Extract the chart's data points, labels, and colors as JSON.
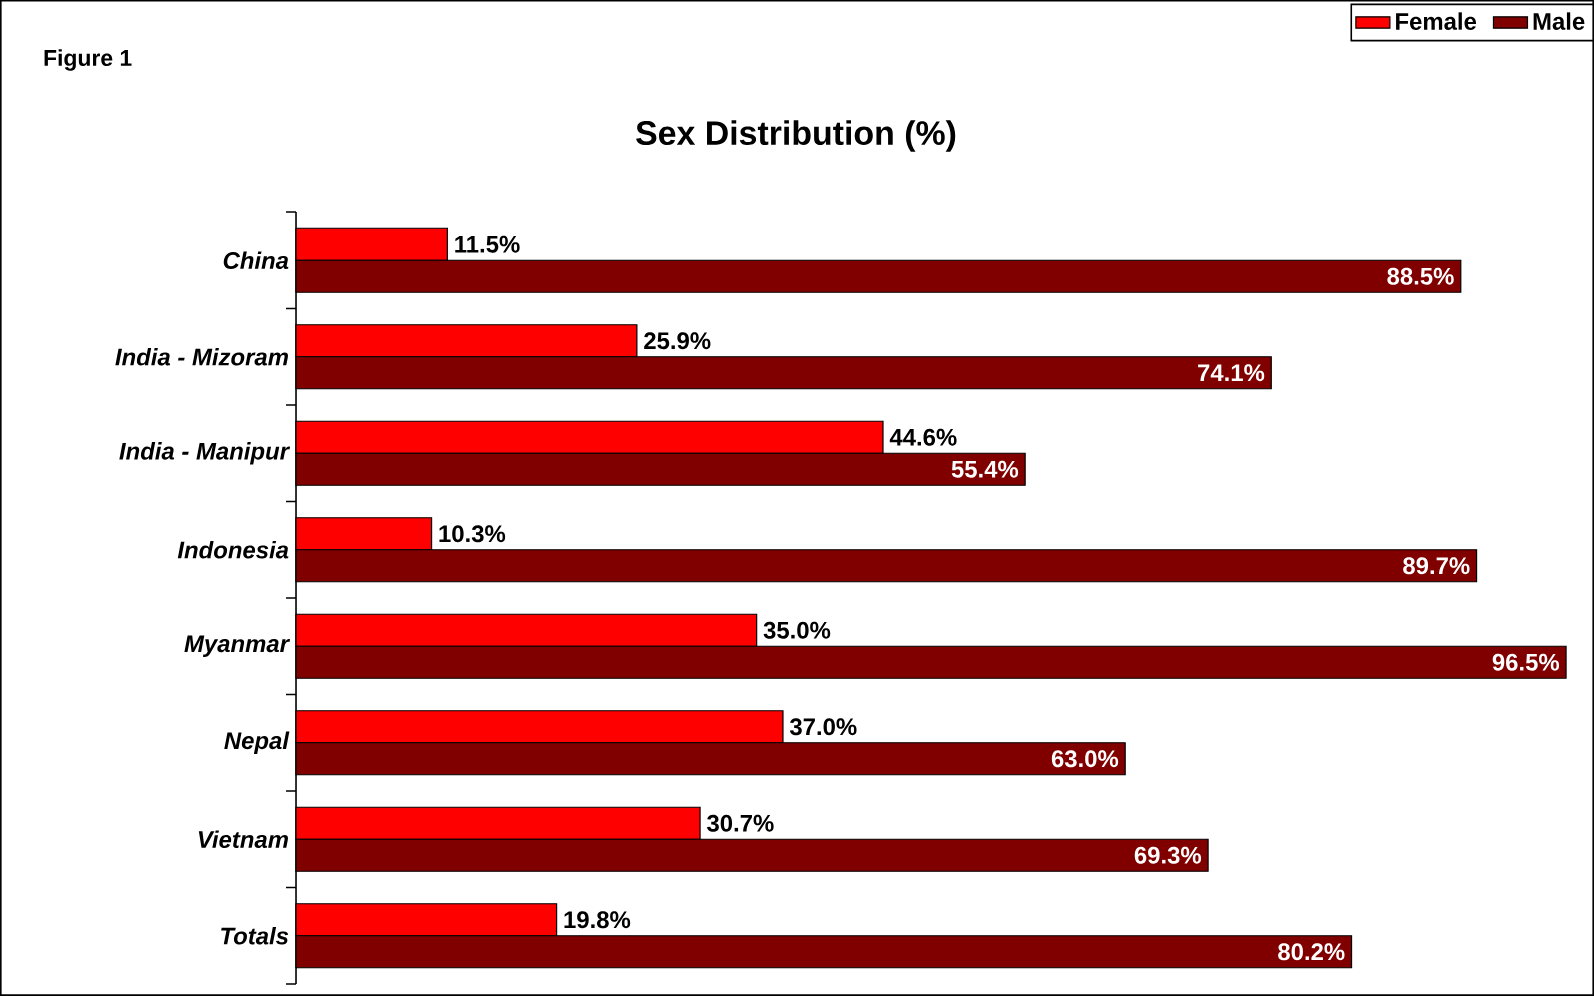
{
  "chart_data": {
    "type": "bar",
    "orientation": "horizontal",
    "title": "Sex Distribution (%)",
    "annotations": [
      "Figure 1"
    ],
    "categories": [
      "China",
      "India - Mizoram",
      "India - Manipur",
      "Indonesia",
      "Myanmar",
      "Nepal",
      "Vietnam",
      "Totals"
    ],
    "series": [
      {
        "name": "Female",
        "color": "#ff0000",
        "values": [
          11.5,
          25.9,
          44.6,
          10.3,
          35.0,
          37.0,
          30.7,
          19.8
        ],
        "value_labels": [
          "11.5%",
          "25.9%",
          "44.6%",
          "10.3%",
          "35.0%",
          "37.0%",
          "30.7%",
          "19.8%"
        ]
      },
      {
        "name": "Male",
        "color": "#800000",
        "values": [
          88.5,
          74.1,
          55.4,
          89.7,
          96.5,
          63.0,
          69.3,
          80.2
        ],
        "value_labels": [
          "88.5%",
          "74.1%",
          "55.4%",
          "89.7%",
          "96.5%",
          "63.0%",
          "69.3%",
          "80.2%"
        ]
      }
    ],
    "legend": "top right"
  }
}
